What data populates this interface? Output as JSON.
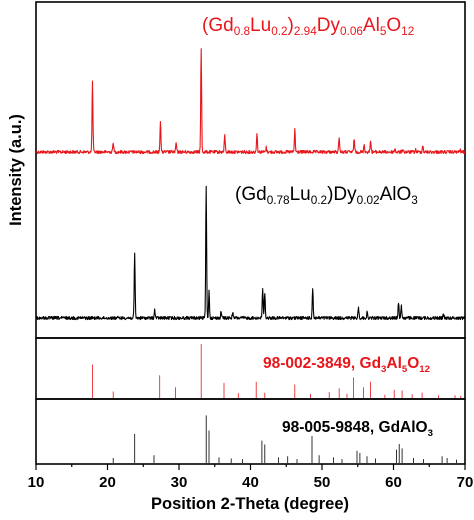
{
  "chart_data": {
    "type": "line",
    "xlabel": "Position 2-Theta (degree)",
    "ylabel": "Intensity (a.u.)",
    "xlim": [
      10,
      70
    ],
    "xticks": [
      "10",
      "20",
      "30",
      "40",
      "50",
      "60",
      "70"
    ],
    "grid": false,
    "series": [
      {
        "name": "(Gd0.8Lu0.2)2.94Dy0.06Al5O12",
        "label_parts": [
          {
            "text": "(Gd",
            "sub": false
          },
          {
            "text": "0.8",
            "sub": true
          },
          {
            "text": "Lu",
            "sub": false
          },
          {
            "text": "0.2",
            "sub": true
          },
          {
            "text": ")",
            "sub": false
          },
          {
            "text": "2.94",
            "sub": true
          },
          {
            "text": "Dy",
            "sub": false
          },
          {
            "text": "0.06",
            "sub": true
          },
          {
            "text": "Al",
            "sub": false
          },
          {
            "text": "5",
            "sub": true
          },
          {
            "text": "O",
            "sub": false
          },
          {
            "text": "12",
            "sub": true
          }
        ],
        "color": "#e8161b",
        "peaks": [
          {
            "x": 17.9,
            "h": 0.62
          },
          {
            "x": 20.8,
            "h": 0.09
          },
          {
            "x": 27.4,
            "h": 0.28
          },
          {
            "x": 29.6,
            "h": 0.08
          },
          {
            "x": 33.1,
            "h": 0.92
          },
          {
            "x": 36.4,
            "h": 0.15
          },
          {
            "x": 40.9,
            "h": 0.17
          },
          {
            "x": 42.2,
            "h": 0.04
          },
          {
            "x": 46.2,
            "h": 0.2
          },
          {
            "x": 52.4,
            "h": 0.14
          },
          {
            "x": 54.5,
            "h": 0.12
          },
          {
            "x": 55.9,
            "h": 0.07
          },
          {
            "x": 56.8,
            "h": 0.11
          },
          {
            "x": 60.2,
            "h": 0.03
          },
          {
            "x": 61.3,
            "h": 0.03
          },
          {
            "x": 63.1,
            "h": 0.02
          },
          {
            "x": 64.1,
            "h": 0.06
          },
          {
            "x": 69.3,
            "h": 0.02
          }
        ]
      },
      {
        "name": "(Gd0.78Lu0.2)Dy0.02AlO3",
        "label_parts": [
          {
            "text": "(Gd",
            "sub": false
          },
          {
            "text": "0.78",
            "sub": true
          },
          {
            "text": "Lu",
            "sub": false
          },
          {
            "text": "0.2",
            "sub": true
          },
          {
            "text": ")Dy",
            "sub": false
          },
          {
            "text": "0.02",
            "sub": true
          },
          {
            "text": "AlO",
            "sub": false
          },
          {
            "text": "3",
            "sub": true
          }
        ],
        "color": "#000000",
        "peaks": [
          {
            "x": 23.8,
            "h": 0.48
          },
          {
            "x": 26.6,
            "h": 0.06
          },
          {
            "x": 33.8,
            "h": 0.98
          },
          {
            "x": 34.2,
            "h": 0.2
          },
          {
            "x": 35.9,
            "h": 0.05
          },
          {
            "x": 37.5,
            "h": 0.04
          },
          {
            "x": 41.7,
            "h": 0.22
          },
          {
            "x": 42.0,
            "h": 0.19
          },
          {
            "x": 48.7,
            "h": 0.22
          },
          {
            "x": 55.1,
            "h": 0.08
          },
          {
            "x": 56.3,
            "h": 0.04
          },
          {
            "x": 60.7,
            "h": 0.12
          },
          {
            "x": 61.1,
            "h": 0.09
          },
          {
            "x": 67.0,
            "h": 0.03
          }
        ]
      }
    ],
    "references": [
      {
        "name": "98-002-3849, Gd3Al5O12",
        "label_parts": [
          {
            "text": "98-002-3849, Gd",
            "sub": false
          },
          {
            "text": "3",
            "sub": true
          },
          {
            "text": "Al",
            "sub": false
          },
          {
            "text": "5",
            "sub": true
          },
          {
            "text": "O",
            "sub": false
          },
          {
            "text": "12",
            "sub": true
          }
        ],
        "color": "#e8161b",
        "lines": [
          {
            "x": 17.9,
            "h": 0.62
          },
          {
            "x": 20.8,
            "h": 0.12
          },
          {
            "x": 27.3,
            "h": 0.42
          },
          {
            "x": 29.5,
            "h": 0.2
          },
          {
            "x": 33.1,
            "h": 1.0
          },
          {
            "x": 36.3,
            "h": 0.28
          },
          {
            "x": 38.3,
            "h": 0.09
          },
          {
            "x": 40.8,
            "h": 0.3
          },
          {
            "x": 42.0,
            "h": 0.1
          },
          {
            "x": 46.2,
            "h": 0.25
          },
          {
            "x": 48.4,
            "h": 0.08
          },
          {
            "x": 51.0,
            "h": 0.11
          },
          {
            "x": 52.4,
            "h": 0.18
          },
          {
            "x": 53.5,
            "h": 0.08
          },
          {
            "x": 54.4,
            "h": 0.38
          },
          {
            "x": 55.8,
            "h": 0.2
          },
          {
            "x": 56.8,
            "h": 0.3
          },
          {
            "x": 58.8,
            "h": 0.06
          },
          {
            "x": 60.1,
            "h": 0.15
          },
          {
            "x": 61.2,
            "h": 0.14
          },
          {
            "x": 62.6,
            "h": 0.07
          },
          {
            "x": 64.0,
            "h": 0.1
          },
          {
            "x": 66.3,
            "h": 0.05
          },
          {
            "x": 68.6,
            "h": 0.05
          },
          {
            "x": 69.4,
            "h": 0.04
          }
        ]
      },
      {
        "name": "98-005-9848, GdAlO3",
        "label_parts": [
          {
            "text": "98-005-9848, GdAlO",
            "sub": false
          },
          {
            "text": "3",
            "sub": true
          }
        ],
        "color": "#000000",
        "lines": [
          {
            "x": 20.8,
            "h": 0.09
          },
          {
            "x": 23.8,
            "h": 0.52
          },
          {
            "x": 26.5,
            "h": 0.14
          },
          {
            "x": 33.8,
            "h": 0.85
          },
          {
            "x": 34.2,
            "h": 0.58
          },
          {
            "x": 35.6,
            "h": 0.1
          },
          {
            "x": 37.3,
            "h": 0.08
          },
          {
            "x": 38.9,
            "h": 0.07
          },
          {
            "x": 41.6,
            "h": 0.4
          },
          {
            "x": 42.0,
            "h": 0.33
          },
          {
            "x": 43.9,
            "h": 0.1
          },
          {
            "x": 45.2,
            "h": 0.12
          },
          {
            "x": 46.5,
            "h": 0.07
          },
          {
            "x": 48.6,
            "h": 0.48
          },
          {
            "x": 49.6,
            "h": 0.14
          },
          {
            "x": 51.6,
            "h": 0.1
          },
          {
            "x": 52.8,
            "h": 0.07
          },
          {
            "x": 54.9,
            "h": 0.22
          },
          {
            "x": 55.3,
            "h": 0.18
          },
          {
            "x": 56.3,
            "h": 0.12
          },
          {
            "x": 57.5,
            "h": 0.08
          },
          {
            "x": 60.4,
            "h": 0.24
          },
          {
            "x": 60.8,
            "h": 0.34
          },
          {
            "x": 61.2,
            "h": 0.26
          },
          {
            "x": 62.8,
            "h": 0.09
          },
          {
            "x": 64.2,
            "h": 0.07
          },
          {
            "x": 66.8,
            "h": 0.12
          },
          {
            "x": 67.5,
            "h": 0.09
          },
          {
            "x": 68.8,
            "h": 0.06
          }
        ]
      }
    ]
  }
}
